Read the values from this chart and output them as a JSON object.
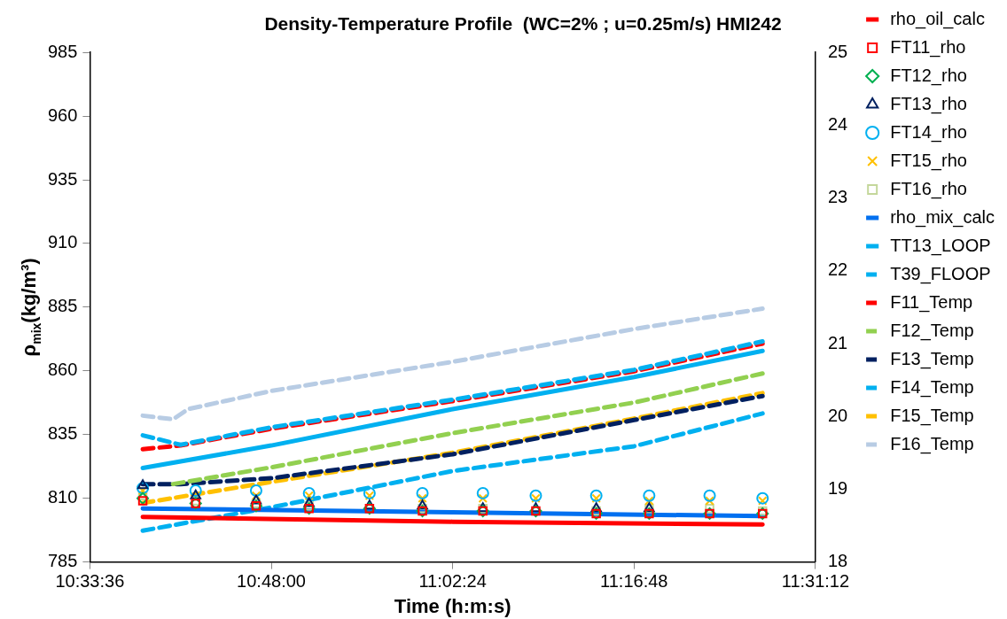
{
  "chart_data": {
    "type": "line",
    "title": "Density-Temperature Profile  (WC=2% ; u=0.25m/s) HMI242",
    "xlabel": "Time (h:m:s)",
    "ylabel": "ρ$_{mix}$(kg/m³)",
    "xlim": [
      10.56,
      11.52
    ],
    "xticks": [
      {
        "value": 10.56,
        "label": "10:33:36"
      },
      {
        "value": 10.8,
        "label": "10:48:00"
      },
      {
        "value": 11.04,
        "label": "11:02:24"
      },
      {
        "value": 11.28,
        "label": "11:16:48"
      },
      {
        "value": 11.52,
        "label": "11:31:12"
      }
    ],
    "ylim": [
      785,
      985
    ],
    "yticks": [
      785,
      810,
      835,
      860,
      885,
      910,
      935,
      960,
      985
    ],
    "y2lim": [
      18,
      25
    ],
    "y2ticks": [
      18,
      19,
      20,
      21,
      22,
      23,
      24,
      25
    ],
    "grid": false,
    "legend": "right",
    "series": [
      {
        "name": "rho_oil_calc",
        "type": "line",
        "color": "#ff0000",
        "x": [
          10.63,
          11.04,
          11.45
        ],
        "values": [
          802.7,
          800.8,
          799.7
        ],
        "marker": "none",
        "line_style": "solid"
      },
      {
        "name": "FT11_rho",
        "type": "scatter",
        "color": "#ff0000",
        "x": [
          10.63,
          10.7,
          10.78,
          10.85,
          10.93,
          11.0,
          11.08,
          11.15,
          11.23,
          11.3,
          11.38,
          11.45
        ],
        "values": [
          809,
          808,
          807,
          806,
          806,
          805,
          805,
          805,
          804,
          804,
          804,
          804
        ],
        "marker": "square"
      },
      {
        "name": "FT12_rho",
        "type": "scatter",
        "color": "#00b050",
        "x": [
          10.63,
          10.7,
          10.78,
          10.85,
          10.93,
          11.0,
          11.08,
          11.15,
          11.23,
          11.3,
          11.38,
          11.45
        ],
        "values": [
          810,
          808,
          807,
          806,
          806,
          805,
          805,
          805,
          804,
          804,
          804,
          804
        ],
        "marker": "diamond"
      },
      {
        "name": "FT13_rho",
        "type": "scatter",
        "color": "#002060",
        "x": [
          10.63,
          10.7,
          10.78,
          10.85,
          10.93,
          11.0,
          11.08,
          11.15,
          11.23,
          11.3
        ],
        "values": [
          815,
          811,
          809,
          808,
          807,
          807,
          806,
          806,
          806,
          806
        ],
        "marker": "triangle"
      },
      {
        "name": "FT14_rho",
        "type": "scatter",
        "color": "#00b0f0",
        "x": [
          10.63,
          10.7,
          10.78,
          10.85,
          10.93,
          11.0,
          11.08,
          11.15,
          11.23,
          11.3,
          11.38,
          11.45
        ],
        "values": [
          814,
          813,
          813,
          812,
          812,
          812,
          812,
          811,
          811,
          811,
          811,
          810
        ],
        "marker": "circle"
      },
      {
        "name": "FT15_rho",
        "type": "scatter",
        "color": "#ffc000",
        "x": [
          10.63,
          10.7,
          10.78,
          10.85,
          10.93,
          11.0,
          11.08,
          11.15,
          11.23,
          11.3,
          11.38,
          11.45
        ],
        "values": [
          813,
          null,
          811,
          811,
          811,
          810,
          810,
          810,
          810,
          809,
          809,
          809
        ],
        "marker": "cross"
      },
      {
        "name": "FT16_rho",
        "type": "scatter",
        "color": "#c4d79b",
        "x": [
          10.63,
          10.7,
          10.78,
          10.85,
          10.93,
          11.0,
          11.08,
          11.15,
          11.23,
          11.3,
          11.38,
          11.45
        ],
        "values": [
          811,
          809,
          808,
          807,
          null,
          806,
          806,
          null,
          805,
          806,
          806,
          805
        ],
        "marker": "square"
      },
      {
        "name": "rho_mix_calc",
        "type": "line",
        "color": "#0070f0",
        "x": [
          10.63,
          11.04,
          11.45
        ],
        "values": [
          806,
          804.5,
          803
        ],
        "marker": "none",
        "line_style": "solid"
      },
      {
        "name": "TT13_LOOP",
        "type": "line",
        "axis": "y2",
        "color": "#00b0f0",
        "x": [
          10.63,
          10.8,
          11.04,
          11.28,
          11.45
        ],
        "values": [
          19.29,
          19.6,
          20.1,
          20.54,
          20.9
        ],
        "marker": "none",
        "line_style": "solid"
      },
      {
        "name": "T39_FLOOP",
        "type": "line",
        "axis": "y2",
        "color": "#00b0f0",
        "x": [
          10.63,
          10.68,
          10.8,
          11.04,
          11.28,
          11.45
        ],
        "values": [
          19.74,
          19.61,
          19.85,
          20.23,
          20.64,
          21.03
        ],
        "marker": "none",
        "line_style": "dashed"
      },
      {
        "name": "F11_Temp",
        "type": "line",
        "axis": "y2",
        "color": "#ff0000",
        "x": [
          10.63,
          10.68,
          10.8,
          11.04,
          11.28,
          11.45
        ],
        "values": [
          19.55,
          19.6,
          19.83,
          20.21,
          20.62,
          21.0
        ],
        "marker": "none",
        "line_style": "dashed"
      },
      {
        "name": "F12_Temp",
        "type": "line",
        "axis": "y2",
        "color": "#92d050",
        "x": [
          10.67,
          10.8,
          11.04,
          11.28,
          11.45
        ],
        "values": [
          19.07,
          19.3,
          19.77,
          20.19,
          20.59
        ],
        "marker": "none",
        "line_style": "dashed"
      },
      {
        "name": "F13_Temp",
        "type": "line",
        "axis": "y2",
        "color": "#002060",
        "x": [
          10.63,
          10.68,
          10.8,
          11.04,
          11.28,
          11.45
        ],
        "values": [
          19.07,
          19.07,
          19.15,
          19.48,
          19.95,
          20.28
        ],
        "marker": "none",
        "line_style": "dashed"
      },
      {
        "name": "F14_Temp",
        "type": "line",
        "axis": "y2",
        "color": "#00b0f0",
        "x": [
          10.63,
          10.8,
          11.04,
          11.28,
          11.45
        ],
        "values": [
          18.43,
          18.75,
          19.25,
          19.59,
          20.04
        ],
        "marker": "none",
        "line_style": "dashed"
      },
      {
        "name": "F15_Temp",
        "type": "line",
        "axis": "y2",
        "color": "#ffc000",
        "x": [
          10.63,
          10.8,
          11.04,
          11.28,
          11.45
        ],
        "values": [
          18.81,
          19.1,
          19.5,
          19.97,
          20.32
        ],
        "marker": "none",
        "line_style": "dashed"
      },
      {
        "name": "F16_Temp",
        "type": "line",
        "axis": "y2",
        "color": "#b8cce4",
        "x": [
          10.63,
          10.67,
          10.69,
          10.8,
          11.04,
          11.28,
          11.45
        ],
        "values": [
          20.01,
          19.96,
          20.1,
          20.35,
          20.75,
          21.2,
          21.48
        ],
        "marker": "none",
        "line_style": "dashed"
      }
    ]
  }
}
